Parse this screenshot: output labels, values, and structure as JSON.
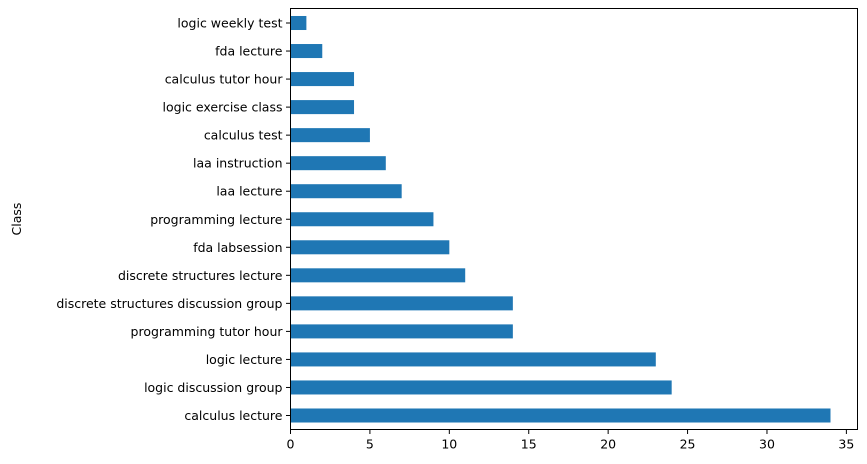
{
  "chart_data": {
    "type": "bar",
    "orientation": "horizontal",
    "title": "",
    "xlabel": "",
    "ylabel": "Class",
    "categories": [
      "calculus lecture",
      "logic discussion group",
      "logic lecture",
      "programming tutor hour",
      "discrete structures discussion group",
      "discrete structures lecture",
      "fda labsession",
      "programming lecture",
      "laa lecture",
      "laa instruction",
      "calculus test",
      "logic exercise class",
      "calculus tutor hour",
      "fda lecture",
      "logic weekly test"
    ],
    "values": [
      34,
      24,
      23,
      14,
      14,
      11,
      10,
      9,
      7,
      6,
      5,
      4,
      4,
      2,
      1
    ],
    "xlim": [
      0,
      35.7
    ],
    "xticks": [
      0,
      5,
      10,
      15,
      20,
      25,
      30,
      35
    ],
    "bar_color": "#1f77b4",
    "grid": false,
    "legend": "none"
  }
}
